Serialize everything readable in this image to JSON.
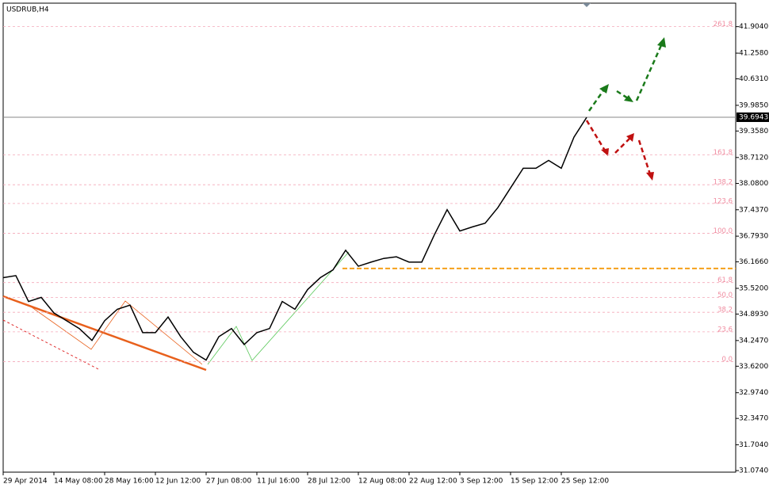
{
  "chart_data": {
    "type": "line",
    "title": "USDRUB,H4",
    "categories": [
      "29 Apr 2014",
      null,
      null,
      null,
      "14 May 08:00",
      null,
      null,
      null,
      "28 May 16:00",
      null,
      null,
      null,
      "12 Jun 12:00",
      null,
      null,
      null,
      "27 Jun 08:00",
      null,
      null,
      null,
      "11 Jul 16:00",
      null,
      null,
      null,
      "28 Jul 12:00",
      null,
      null,
      null,
      "12 Aug 08:00",
      null,
      null,
      null,
      "22 Aug 12:00",
      null,
      null,
      null,
      "3 Sep 12:00",
      null,
      null,
      null,
      "15 Sep 12:00",
      null,
      null,
      null,
      "25 Sep 12:00",
      null,
      null
    ],
    "values": [
      35.78,
      35.83,
      35.2,
      35.3,
      34.92,
      34.73,
      34.54,
      34.25,
      34.73,
      35.01,
      35.11,
      34.44,
      34.44,
      34.82,
      34.34,
      33.96,
      33.77,
      34.34,
      34.54,
      34.15,
      34.44,
      34.54,
      35.2,
      35.01,
      35.49,
      35.78,
      35.97,
      36.45,
      36.06,
      36.16,
      36.25,
      36.29,
      36.16,
      36.16,
      36.83,
      37.44,
      36.92,
      37.02,
      37.11,
      37.49,
      37.97,
      38.45,
      38.45,
      38.64,
      38.45,
      39.21,
      39.69
    ],
    "color": "#000000",
    "ylim": [
      31.036,
      42.477
    ],
    "yticks": [
      {
        "value": 41.904,
        "label": "41.9040"
      },
      {
        "value": 41.258,
        "label": "41.2580"
      },
      {
        "value": 40.631,
        "label": "40.6310"
      },
      {
        "value": 39.985,
        "label": "39.9850"
      },
      {
        "value": 39.358,
        "label": "39.3580"
      },
      {
        "value": 38.712,
        "label": "38.7120"
      },
      {
        "value": 38.08,
        "label": "38.0800"
      },
      {
        "value": 37.437,
        "label": "37.4370"
      },
      {
        "value": 36.793,
        "label": "36.7930"
      },
      {
        "value": 36.166,
        "label": "36.1660"
      },
      {
        "value": 35.52,
        "label": "35.5200"
      },
      {
        "value": 34.893,
        "label": "34.8930"
      },
      {
        "value": 34.247,
        "label": "34.2470"
      },
      {
        "value": 33.62,
        "label": "33.6200"
      },
      {
        "value": 32.974,
        "label": "32.9740"
      },
      {
        "value": 32.347,
        "label": "32.3470"
      },
      {
        "value": 31.704,
        "label": "31.7040"
      },
      {
        "value": 31.074,
        "label": "31.0740"
      }
    ],
    "current_price": 39.6943,
    "support_level": 36.005,
    "fib_levels": [
      {
        "level": 261.8,
        "price": 41.904
      },
      {
        "level": 161.8,
        "price": 38.774
      },
      {
        "level": 138.2,
        "price": 38.048
      },
      {
        "level": 123.6,
        "price": 37.59
      },
      {
        "level": {
          "value": 100,
          "label": "100.0"
        },
        "price": 36.864
      },
      {
        "level": 61.8,
        "price": 35.661
      },
      {
        "level": {
          "value": 50,
          "label": "50.0"
        },
        "price": 35.298
      },
      {
        "level": 38.2,
        "price": 34.936
      },
      {
        "level": 23.6,
        "price": 34.459
      },
      {
        "level": {
          "value": 0,
          "label": "0.0"
        },
        "price": 33.733
      }
    ]
  }
}
